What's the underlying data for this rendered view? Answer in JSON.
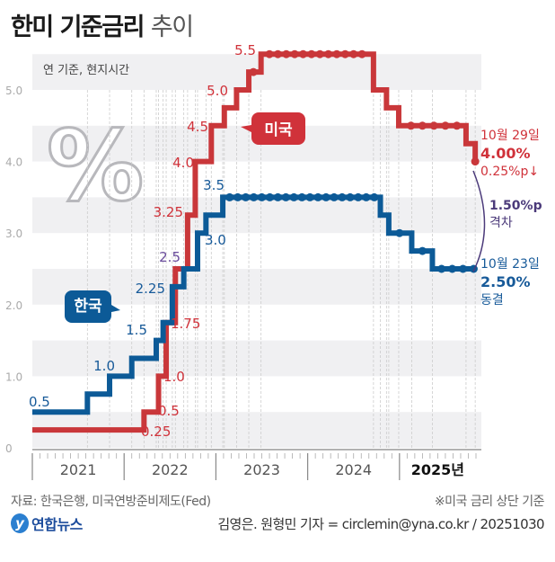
{
  "title": {
    "bold": "한미 기준금리",
    "light": "추이"
  },
  "chart_data": {
    "type": "line",
    "title": "한미 기준금리 추이",
    "subtitle": "연 기준, 현지시간",
    "ylim": [
      0,
      5.5
    ],
    "yticks": [
      "0",
      "1.0",
      "2.0",
      "3.0",
      "4.0",
      "5.0"
    ],
    "x_categories": [
      "2021",
      "2022",
      "2023",
      "2024",
      "2025년"
    ],
    "grid": "alternating horizontal bands every 0.5",
    "series": [
      {
        "name": "미국",
        "color": "#c9373a",
        "points": [
          {
            "t": 0.0,
            "v": 0.25
          },
          {
            "t": 14.6,
            "v": 0.5
          },
          {
            "t": 16.5,
            "v": 1.0
          },
          {
            "t": 17.5,
            "v": 1.75
          },
          {
            "t": 18.7,
            "v": 2.5
          },
          {
            "t": 20.3,
            "v": 3.25
          },
          {
            "t": 21.3,
            "v": 4.0
          },
          {
            "t": 23.4,
            "v": 4.5
          },
          {
            "t": 25.1,
            "v": 4.75
          },
          {
            "t": 26.7,
            "v": 5.0
          },
          {
            "t": 28.3,
            "v": 5.25
          },
          {
            "t": 29.9,
            "v": 5.5
          },
          {
            "t": 44.6,
            "v": 5.0
          },
          {
            "t": 46.3,
            "v": 4.75
          },
          {
            "t": 47.9,
            "v": 4.5
          },
          {
            "t": 56.7,
            "v": 4.25
          },
          {
            "t": 57.9,
            "v": 4.0
          }
        ],
        "labels": [
          "0.25",
          "0.5",
          "1.0",
          "1.75",
          "2.5",
          "3.25",
          "4.0",
          "4.5",
          "5.0",
          "5.5"
        ]
      },
      {
        "name": "한국",
        "color": "#0c5a97",
        "points": [
          {
            "t": 0.0,
            "v": 0.5
          },
          {
            "t": 7.2,
            "v": 0.75
          },
          {
            "t": 10.1,
            "v": 1.0
          },
          {
            "t": 13.0,
            "v": 1.25
          },
          {
            "t": 16.2,
            "v": 1.5
          },
          {
            "t": 17.1,
            "v": 1.75
          },
          {
            "t": 18.3,
            "v": 2.25
          },
          {
            "t": 19.8,
            "v": 2.5
          },
          {
            "t": 21.6,
            "v": 3.0
          },
          {
            "t": 22.7,
            "v": 3.25
          },
          {
            "t": 24.9,
            "v": 3.5
          },
          {
            "t": 45.5,
            "v": 3.25
          },
          {
            "t": 46.6,
            "v": 3.0
          },
          {
            "t": 49.6,
            "v": 2.75
          },
          {
            "t": 52.3,
            "v": 2.5
          },
          {
            "t": 57.9,
            "v": 2.5
          }
        ],
        "labels": [
          "0.5",
          "1.0",
          "1.5",
          "2.25",
          "2.5",
          "3.0",
          "3.5"
        ]
      }
    ],
    "annotations": {
      "us_date": "10월 29일",
      "us_value": "4.00%",
      "us_change": "0.25%p↓",
      "gap_value": "1.50%p",
      "gap_label": "격차",
      "kr_date": "10월 23일",
      "kr_value": "2.50%",
      "kr_change": "동결",
      "us_tag": "미국",
      "kr_tag": "한국"
    }
  },
  "footer": {
    "source": "자료: 한국은행, 미국연방준비제도(Fed)",
    "note": "※미국 금리 상단 기준",
    "logo_text": "연합뉴스",
    "credit": "김영은. 원형민 기자 = circlemin@yna.co.kr / 20251030"
  }
}
